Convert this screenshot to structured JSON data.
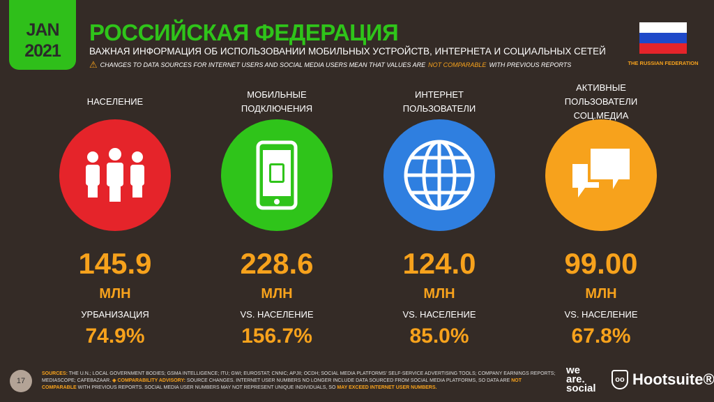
{
  "header": {
    "date_month": "JAN",
    "date_year": "2021",
    "title": "РОССИЙСКАЯ ФЕДЕРАЦИЯ",
    "subtitle": "ВАЖНАЯ ИНФОРМАЦИЯ ОБ ИСПОЛЬЗОВАНИИ МОБИЛЬНЫХ УСТРОЙСТВ, ИНТЕРНЕТА И СОЦИАЛЬНЫХ СЕТЕЙ",
    "warning_pre": "CHANGES TO DATA SOURCES FOR INTERNET USERS AND SOCIAL MEDIA USERS MEAN THAT VALUES ARE",
    "warning_highlight": "NOT COMPARABLE",
    "warning_post": "WITH PREVIOUS REPORTS",
    "flag_caption": "THE RUSSIAN FEDERATION"
  },
  "stats": [
    {
      "label": "НАСЕЛЕНИЕ",
      "icon": "people-icon",
      "color": "#e5242a",
      "value": "145.9",
      "unit": "МЛН",
      "sub_label": "УРБАНИЗАЦИЯ",
      "sub_value": "74.9%"
    },
    {
      "label": "МОБИЛЬНЫЕ ПОДКЛЮЧЕНИЯ",
      "icon": "mobile-phone-icon",
      "color": "#2fc41a",
      "value": "228.6",
      "unit": "МЛН",
      "sub_label": "VS. НАСЕЛЕНИЕ",
      "sub_value": "156.7%"
    },
    {
      "label": "ИНТЕРНЕТ ПОЛЬЗОВАТЕЛИ",
      "icon": "globe-icon",
      "color": "#2f7fe0",
      "value": "124.0",
      "unit": "МЛН",
      "sub_label": "VS. НАСЕЛЕНИЕ",
      "sub_value": "85.0%"
    },
    {
      "label": "АКТИВНЫЕ ПОЛЬЗОВАТЕЛИ СОЦ.МЕДИА",
      "icon": "chat-bubbles-icon",
      "color": "#f7a21c",
      "value": "99.00",
      "unit": "МЛН",
      "sub_label": "VS. НАСЕЛЕНИЕ",
      "sub_value": "67.8%"
    }
  ],
  "footer": {
    "page": "17",
    "sources_label": "SOURCES:",
    "sources": "THE U.N.; LOCAL GOVERNMENT BODIES; GSMA INTELLIGENCE; ITU; GWI; EUROSTAT; CNNIC; APJII; OCDH; SOCIAL MEDIA PLATFORMS' SELF-SERVICE ADVERTISING TOOLS; COMPANY EARNINGS REPORTS; MEDIASCOPE; CAFEBAZAAR.",
    "advisory_label": "◈ COMPARABILITY ADVISORY:",
    "advisory": "SOURCE CHANGES. INTERNET USER NUMBERS NO LONGER INCLUDE DATA SOURCED FROM SOCIAL MEDIA PLATFORMS, SO DATA ARE",
    "not_comparable": "NOT COMPARABLE",
    "advisory2": "WITH PREVIOUS REPORTS. SOCIAL MEDIA USER NUMBERS MAY NOT REPRESENT UNIQUE INDIVIDUALS, SO",
    "exceed": "MAY EXCEED INTERNET USER NUMBERS.",
    "brand1_l1": "we",
    "brand1_l2": "are.",
    "brand1_l3": "social",
    "brand2": "Hootsuite®"
  }
}
